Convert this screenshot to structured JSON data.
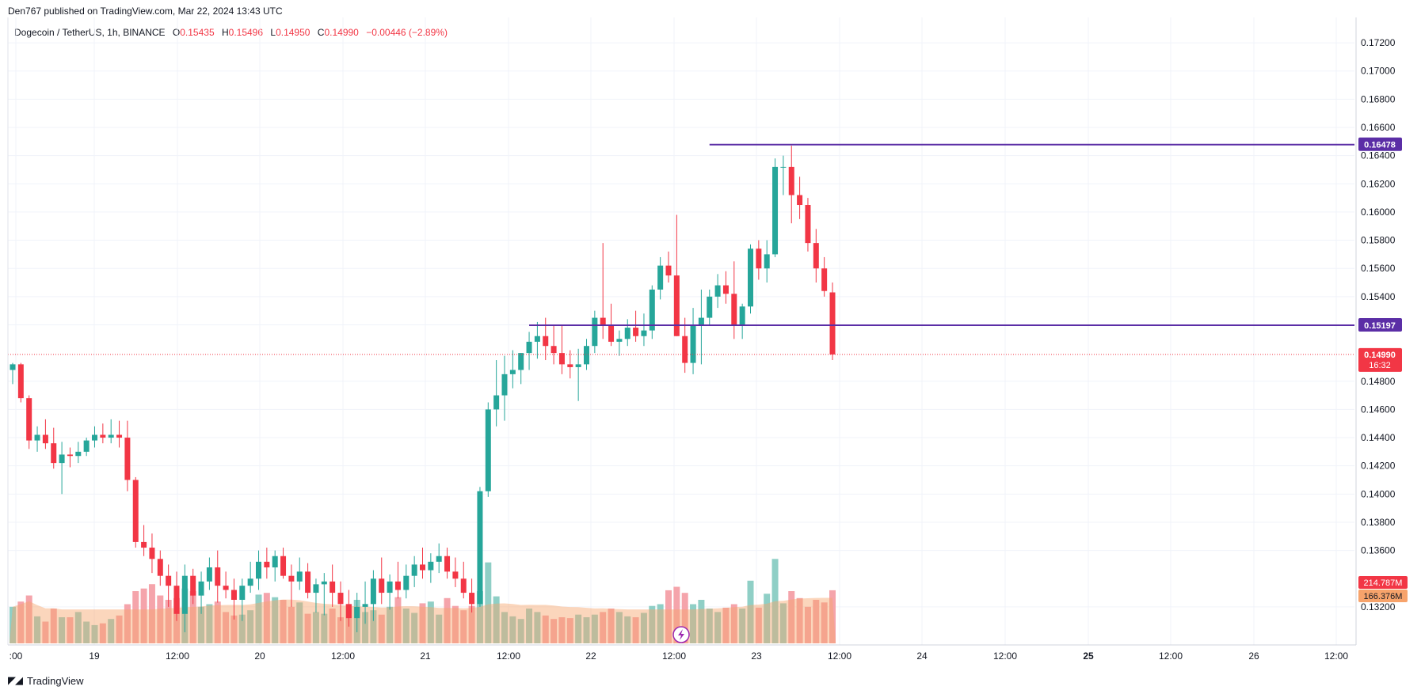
{
  "header": {
    "published": "Den767 published on TradingView.com, Mar 22, 2024 13:43 UTC"
  },
  "legend": {
    "symbol": "Dogecoin / TetherUS, 1h, BINANCE",
    "o_label": "O",
    "o_value": "0.15435",
    "h_label": "H",
    "h_value": "0.15496",
    "l_label": "L",
    "l_value": "0.14950",
    "c_label": "C",
    "c_value": "0.14990",
    "change": "−0.00446 (−2.89%)"
  },
  "footer": {
    "brand": "TradingView"
  },
  "colors": {
    "up": "#26a69a",
    "down": "#f23645",
    "vol_up": "#8fcfc6",
    "vol_down": "#f5a4ab",
    "vol_ma": "#f7a36b",
    "hline": "#5b2ea6",
    "grid": "#f0f3fa"
  },
  "chart_data": {
    "type": "candlestick",
    "y_ticks": [
      "0.17200",
      "0.17000",
      "0.16800",
      "0.16600",
      "0.16400",
      "0.16200",
      "0.16000",
      "0.15800",
      "0.15600",
      "0.15400",
      "0.15200",
      "0.14800",
      "0.14600",
      "0.14400",
      "0.14200",
      "0.14000",
      "0.13800",
      "0.13600",
      "0.13200"
    ],
    "x_ticks": [
      ":00",
      "19",
      "12:00",
      "20",
      "12:00",
      "21",
      "12:00",
      "22",
      "12:00",
      "23",
      "12:00",
      "24",
      "12:00",
      "25",
      "12:00",
      "26",
      "12:00"
    ],
    "ylim": [
      0.1293,
      0.1738
    ],
    "horizontal_lines": [
      {
        "value": 0.16478,
        "label": "0.16478"
      },
      {
        "value": 0.15197,
        "label": "0.15197"
      }
    ],
    "last_price": {
      "value": 0.1499,
      "label": "0.14990",
      "countdown": "16:32"
    },
    "volume_labels": {
      "volume": "214.787M",
      "volume_ma": "166.376M"
    },
    "candles": [
      [
        0.1488,
        0.1493,
        0.1478,
        0.1492,
        4.2
      ],
      [
        0.1492,
        0.1493,
        0.1465,
        0.1468,
        4.8
      ],
      [
        0.1468,
        0.147,
        0.1432,
        0.1438,
        5.5
      ],
      [
        0.1438,
        0.1448,
        0.143,
        0.1442,
        3.1
      ],
      [
        0.1442,
        0.1453,
        0.1432,
        0.1436,
        2.5
      ],
      [
        0.1436,
        0.1447,
        0.1418,
        0.1422,
        4.0
      ],
      [
        0.1422,
        0.1437,
        0.14,
        0.1428,
        3.0
      ],
      [
        0.1428,
        0.1433,
        0.1419,
        0.1427,
        3.0
      ],
      [
        0.1427,
        0.1437,
        0.1422,
        0.143,
        3.6
      ],
      [
        0.143,
        0.144,
        0.1427,
        0.1438,
        2.5
      ],
      [
        0.1438,
        0.1448,
        0.1433,
        0.1442,
        2.1
      ],
      [
        0.1442,
        0.145,
        0.1436,
        0.144,
        2.3
      ],
      [
        0.144,
        0.1453,
        0.1436,
        0.1442,
        2.8
      ],
      [
        0.1442,
        0.1452,
        0.1433,
        0.144,
        3.2
      ],
      [
        0.144,
        0.1452,
        0.1402,
        0.141,
        4.5
      ],
      [
        0.141,
        0.1412,
        0.1362,
        0.1366,
        6.0
      ],
      [
        0.1366,
        0.1378,
        0.1356,
        0.1362,
        6.3
      ],
      [
        0.1362,
        0.1372,
        0.1344,
        0.1354,
        6.8
      ],
      [
        0.1354,
        0.136,
        0.1335,
        0.1342,
        5.5
      ],
      [
        0.1342,
        0.135,
        0.132,
        0.1335,
        5.0
      ],
      [
        0.1335,
        0.1345,
        0.131,
        0.1315,
        5.2
      ],
      [
        0.1315,
        0.135,
        0.1302,
        0.1342,
        6.3
      ],
      [
        0.1342,
        0.1347,
        0.1322,
        0.1328,
        6.0
      ],
      [
        0.1328,
        0.1345,
        0.1315,
        0.1338,
        4.2
      ],
      [
        0.1338,
        0.1355,
        0.1332,
        0.1348,
        4.5
      ],
      [
        0.1348,
        0.136,
        0.1323,
        0.1335,
        4.8
      ],
      [
        0.1335,
        0.1345,
        0.1326,
        0.1332,
        3.6
      ],
      [
        0.1332,
        0.134,
        0.1311,
        0.1325,
        3.2
      ],
      [
        0.1325,
        0.134,
        0.131,
        0.1335,
        3.3
      ],
      [
        0.1335,
        0.1352,
        0.133,
        0.134,
        3.8
      ],
      [
        0.134,
        0.136,
        0.1332,
        0.1352,
        5.6
      ],
      [
        0.1352,
        0.1362,
        0.134,
        0.1348,
        5.8
      ],
      [
        0.1348,
        0.136,
        0.1338,
        0.1356,
        5.3
      ],
      [
        0.1356,
        0.1362,
        0.134,
        0.1342,
        5.0
      ],
      [
        0.1342,
        0.135,
        0.132,
        0.1338,
        4.2
      ],
      [
        0.1338,
        0.1355,
        0.1332,
        0.1345,
        4.7
      ],
      [
        0.1345,
        0.1351,
        0.1326,
        0.133,
        3.4
      ],
      [
        0.133,
        0.134,
        0.1316,
        0.1336,
        3.6
      ],
      [
        0.1336,
        0.1344,
        0.1314,
        0.1338,
        3.4
      ],
      [
        0.1338,
        0.135,
        0.132,
        0.133,
        4.0
      ],
      [
        0.133,
        0.1338,
        0.131,
        0.1322,
        3.0
      ],
      [
        0.1322,
        0.1332,
        0.1306,
        0.1312,
        4.5
      ],
      [
        0.1312,
        0.133,
        0.1302,
        0.132,
        5.0
      ],
      [
        0.132,
        0.1338,
        0.1308,
        0.1322,
        3.6
      ],
      [
        0.1322,
        0.1346,
        0.131,
        0.134,
        3.8
      ],
      [
        0.134,
        0.1355,
        0.1322,
        0.133,
        3.3
      ],
      [
        0.133,
        0.1343,
        0.1318,
        0.1338,
        4.2
      ],
      [
        0.1338,
        0.1352,
        0.1326,
        0.1332,
        5.3
      ],
      [
        0.1332,
        0.135,
        0.1326,
        0.1342,
        4.0
      ],
      [
        0.1342,
        0.1356,
        0.1334,
        0.135,
        3.5
      ],
      [
        0.135,
        0.1362,
        0.134,
        0.1346,
        4.6
      ],
      [
        0.1346,
        0.1358,
        0.1337,
        0.1352,
        4.8
      ],
      [
        0.1352,
        0.1365,
        0.1344,
        0.1356,
        3.3
      ],
      [
        0.1356,
        0.1362,
        0.134,
        0.1345,
        5.2
      ],
      [
        0.1345,
        0.1355,
        0.1334,
        0.134,
        4.3
      ],
      [
        0.134,
        0.1352,
        0.1326,
        0.133,
        3.8
      ],
      [
        0.133,
        0.134,
        0.1316,
        0.1322,
        4.3
      ],
      [
        0.1322,
        0.1405,
        0.132,
        0.1402,
        6.0
      ],
      [
        0.1402,
        0.1465,
        0.1398,
        0.146,
        9.3
      ],
      [
        0.146,
        0.1495,
        0.1448,
        0.147,
        5.4
      ],
      [
        0.147,
        0.1498,
        0.1452,
        0.1485,
        3.6
      ],
      [
        0.1485,
        0.1502,
        0.1475,
        0.1488,
        3.1
      ],
      [
        0.1488,
        0.15,
        0.1478,
        0.15,
        2.8
      ],
      [
        0.15,
        0.1515,
        0.1488,
        0.1508,
        4.0
      ],
      [
        0.1508,
        0.1522,
        0.1496,
        0.1512,
        3.6
      ],
      [
        0.1512,
        0.1525,
        0.1495,
        0.1505,
        3.2
      ],
      [
        0.1505,
        0.152,
        0.1492,
        0.15,
        2.8
      ],
      [
        0.15,
        0.152,
        0.1485,
        0.1492,
        3.0
      ],
      [
        0.1492,
        0.1502,
        0.1482,
        0.149,
        2.9
      ],
      [
        0.149,
        0.1503,
        0.1466,
        0.1492,
        3.3
      ],
      [
        0.1492,
        0.151,
        0.1488,
        0.1505,
        3.0
      ],
      [
        0.1505,
        0.153,
        0.15,
        0.1525,
        3.3
      ],
      [
        0.1525,
        0.1578,
        0.151,
        0.152,
        3.6
      ],
      [
        0.152,
        0.1535,
        0.1505,
        0.1508,
        4.0
      ],
      [
        0.1508,
        0.1516,
        0.1498,
        0.151,
        3.6
      ],
      [
        0.151,
        0.1524,
        0.1505,
        0.1518,
        3.1
      ],
      [
        0.1518,
        0.153,
        0.1508,
        0.1512,
        3.0
      ],
      [
        0.1512,
        0.1528,
        0.1505,
        0.1516,
        3.5
      ],
      [
        0.1516,
        0.1548,
        0.151,
        0.1545,
        4.3
      ],
      [
        0.1545,
        0.1568,
        0.1538,
        0.1562,
        4.5
      ],
      [
        0.1562,
        0.1572,
        0.155,
        0.1555,
        6.1
      ],
      [
        0.1555,
        0.1598,
        0.1512,
        0.1512,
        6.5
      ],
      [
        0.1512,
        0.1525,
        0.1486,
        0.1493,
        5.8
      ],
      [
        0.1493,
        0.1532,
        0.1485,
        0.152,
        4.5
      ],
      [
        0.152,
        0.1545,
        0.1492,
        0.1525,
        5.0
      ],
      [
        0.1525,
        0.1545,
        0.152,
        0.154,
        4.0
      ],
      [
        0.154,
        0.1556,
        0.1532,
        0.1548,
        3.6
      ],
      [
        0.1548,
        0.1558,
        0.1535,
        0.1542,
        4.1
      ],
      [
        0.1542,
        0.1565,
        0.151,
        0.152,
        4.5
      ],
      [
        0.152,
        0.1535,
        0.151,
        0.1533,
        4.0
      ],
      [
        0.1533,
        0.1577,
        0.1528,
        0.1574,
        7.2
      ],
      [
        0.1574,
        0.158,
        0.1552,
        0.156,
        4.1
      ],
      [
        0.156,
        0.158,
        0.155,
        0.157,
        5.7
      ],
      [
        0.157,
        0.1638,
        0.1568,
        0.1632,
        9.7
      ],
      [
        0.1632,
        0.164,
        0.1612,
        0.1632,
        4.6
      ],
      [
        0.1632,
        0.1647,
        0.1592,
        0.1612,
        6.0
      ],
      [
        0.1612,
        0.1625,
        0.1595,
        0.1605,
        5.2
      ],
      [
        0.1605,
        0.161,
        0.1572,
        0.1578,
        4.2
      ],
      [
        0.1578,
        0.1588,
        0.155,
        0.156,
        5.0
      ],
      [
        0.156,
        0.1568,
        0.154,
        0.1544,
        4.7
      ],
      [
        0.1543,
        0.155,
        0.1495,
        0.1499,
        6.1
      ]
    ]
  }
}
